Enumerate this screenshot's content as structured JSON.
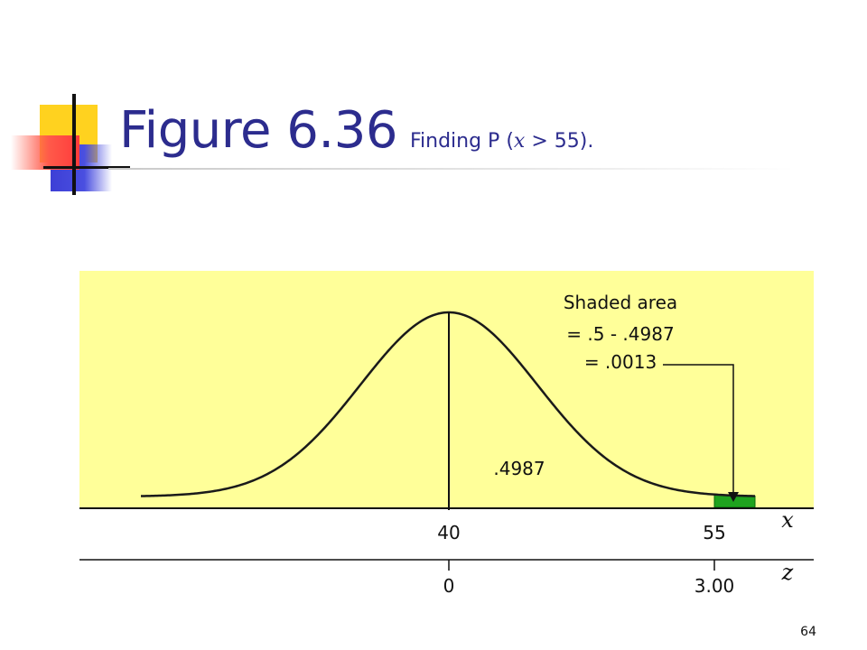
{
  "slide": {
    "title_main": "Figure 6.36",
    "title_sub_prefix": "Finding P (",
    "title_sub_var": "x",
    "title_sub_suffix": " > 55).",
    "page_number": "64"
  },
  "figure": {
    "annotation_lines": [
      "Shaded area",
      "= .5 - .4987",
      "= .0013"
    ],
    "center_area_label": ".4987",
    "x_axis": {
      "name": "x",
      "ticks": [
        "40",
        "55"
      ]
    },
    "z_axis": {
      "name": "z",
      "ticks": [
        "0",
        "3.00"
      ]
    },
    "colors": {
      "panel": "#ffff99",
      "shade": "#1fa31f",
      "title": "#2c2c8e"
    }
  }
}
